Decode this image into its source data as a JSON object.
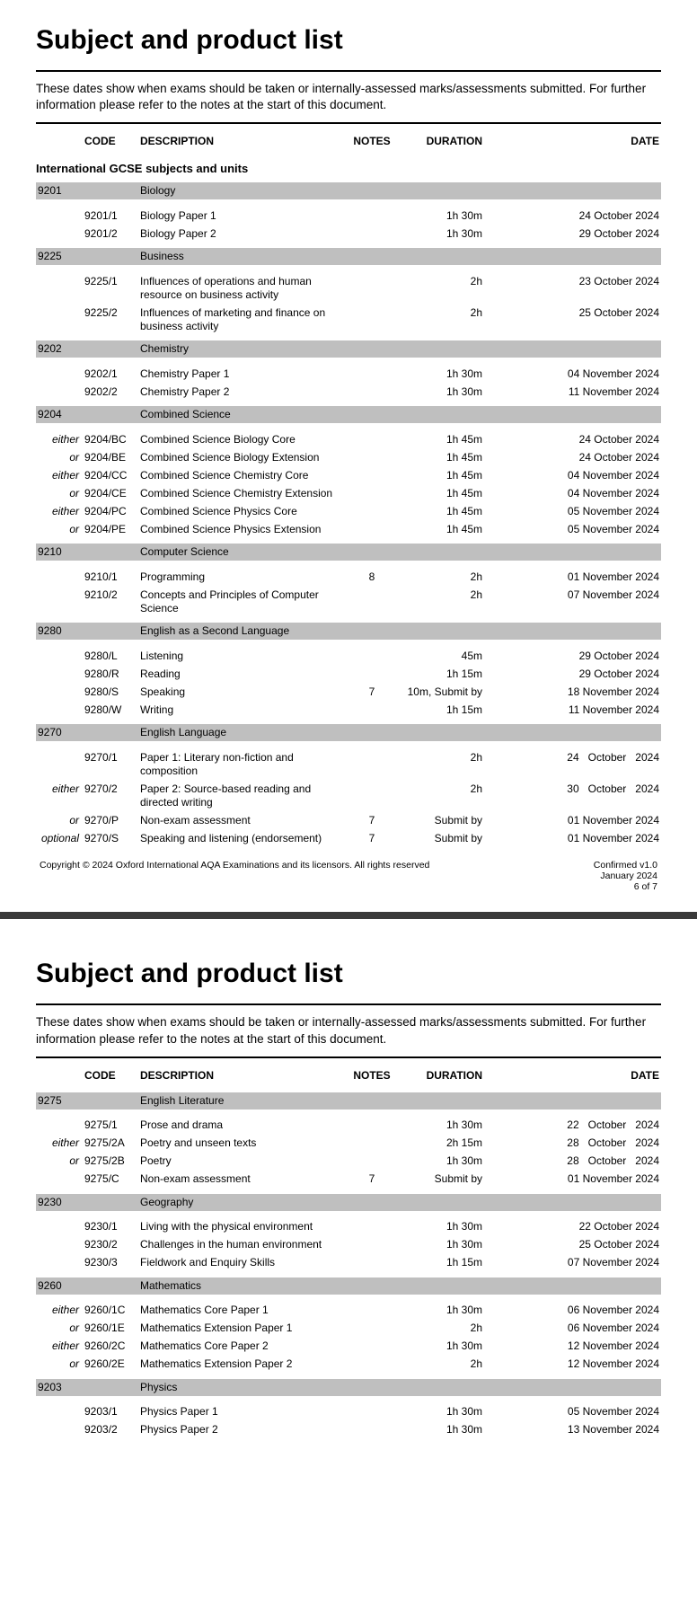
{
  "doc": {
    "title": "Subject and product list",
    "intro": "These dates show when exams should be taken or internally-assessed marks/assessments submitted.  For further information please refer to the notes at the start of this document.",
    "headers": {
      "code": "CODE",
      "description": "DESCRIPTION",
      "notes": "NOTES",
      "duration": "DURATION",
      "date": "DATE"
    },
    "section_heading": "International GCSE subjects and units",
    "footer": {
      "copyright": "Copyright © 2024 Oxford International AQA Examinations and its licensors. All rights reserved",
      "version": "Confirmed v1.0",
      "issued": "January 2024",
      "page": "6 of 7"
    }
  },
  "colors": {
    "bar_bg": "#bfbfbf",
    "text": "#000000",
    "page_bg": "#ffffff"
  },
  "page1_subjects": [
    {
      "code": "9201",
      "name": "Biology",
      "rows": [
        {
          "opt": "",
          "code": "9201/1",
          "desc": "Biology Paper 1",
          "notes": "",
          "dur": "1h 30m",
          "date": "24 October 2024"
        },
        {
          "opt": "",
          "code": "9201/2",
          "desc": "Biology Paper 2",
          "notes": "",
          "dur": "1h 30m",
          "date": "29 October 2024"
        }
      ]
    },
    {
      "code": "9225",
      "name": "Business",
      "rows": [
        {
          "opt": "",
          "code": "9225/1",
          "desc": "Influences of operations and human resource on business activity",
          "notes": "",
          "dur": "2h",
          "date": "23 October 2024"
        },
        {
          "opt": "",
          "code": "9225/2",
          "desc": "Influences of marketing and finance on business activity",
          "notes": "",
          "dur": "2h",
          "date": "25 October 2024"
        }
      ]
    },
    {
      "code": "9202",
      "name": "Chemistry",
      "rows": [
        {
          "opt": "",
          "code": "9202/1",
          "desc": "Chemistry Paper 1",
          "notes": "",
          "dur": "1h 30m",
          "date": "04 November 2024"
        },
        {
          "opt": "",
          "code": "9202/2",
          "desc": "Chemistry Paper 2",
          "notes": "",
          "dur": "1h 30m",
          "date": "11 November 2024"
        }
      ]
    },
    {
      "code": "9204",
      "name": "Combined Science",
      "rows": [
        {
          "opt": "either",
          "code": "9204/BC",
          "desc": "Combined Science Biology Core",
          "notes": "",
          "dur": "1h 45m",
          "date": "24 October 2024"
        },
        {
          "opt": "or",
          "code": "9204/BE",
          "desc": "Combined Science Biology Extension",
          "notes": "",
          "dur": "1h 45m",
          "date": "24 October 2024"
        },
        {
          "opt": "either",
          "code": "9204/CC",
          "desc": "Combined Science Chemistry Core",
          "notes": "",
          "dur": "1h 45m",
          "date": "04 November 2024"
        },
        {
          "opt": "or",
          "code": "9204/CE",
          "desc": "Combined Science Chemistry Extension",
          "notes": "",
          "dur": "1h 45m",
          "date": "04 November 2024"
        },
        {
          "opt": "either",
          "code": "9204/PC",
          "desc": "Combined Science Physics Core",
          "notes": "",
          "dur": "1h 45m",
          "date": "05 November 2024"
        },
        {
          "opt": "or",
          "code": "9204/PE",
          "desc": "Combined Science Physics Extension",
          "notes": "",
          "dur": "1h 45m",
          "date": "05 November 2024"
        }
      ]
    },
    {
      "code": "9210",
      "name": "Computer Science",
      "rows": [
        {
          "opt": "",
          "code": "9210/1",
          "desc": "Programming",
          "notes": "8",
          "dur": "2h",
          "date": "01 November 2024"
        },
        {
          "opt": "",
          "code": "9210/2",
          "desc": "Concepts and Principles of Computer Science",
          "notes": "",
          "dur": "2h",
          "date": "07 November 2024"
        }
      ]
    },
    {
      "code": "9280",
      "name": "English as a Second Language",
      "rows": [
        {
          "opt": "",
          "code": "9280/L",
          "desc": "Listening",
          "notes": "",
          "dur": "45m",
          "date": "29 October 2024"
        },
        {
          "opt": "",
          "code": "9280/R",
          "desc": "Reading",
          "notes": "",
          "dur": "1h 15m",
          "date": "29 October 2024"
        },
        {
          "opt": "",
          "code": "9280/S",
          "desc": "Speaking",
          "notes": "7",
          "dur": "10m, Submit by",
          "date": "18 November 2024"
        },
        {
          "opt": "",
          "code": "9280/W",
          "desc": "Writing",
          "notes": "",
          "dur": "1h 15m",
          "date": "11 November 2024"
        }
      ]
    },
    {
      "code": "9270",
      "name": "English Language",
      "rows": [
        {
          "opt": "",
          "code": "9270/1",
          "desc": "Paper 1: Literary non-fiction and composition",
          "notes": "",
          "dur": "2h",
          "date": "24   October   2024"
        },
        {
          "opt": "either",
          "code": "9270/2",
          "desc": "Paper 2: Source-based reading and directed writing",
          "notes": "",
          "dur": "2h",
          "date": "30   October   2024"
        },
        {
          "opt": "or",
          "code": "9270/P",
          "desc": "Non-exam assessment",
          "notes": "7",
          "dur": "Submit by",
          "date": "01 November 2024"
        },
        {
          "opt": "optional",
          "code": "9270/S",
          "desc": "Speaking and listening (endorsement)",
          "notes": "7",
          "dur": "Submit by",
          "date": "01 November 2024"
        }
      ]
    }
  ],
  "page2_subjects": [
    {
      "code": "9275",
      "name": "English Literature",
      "rows": [
        {
          "opt": "",
          "code": "9275/1",
          "desc": "Prose and drama",
          "notes": "",
          "dur": "1h 30m",
          "date": "22   October   2024"
        },
        {
          "opt": "either",
          "code": "9275/2A",
          "desc": "Poetry and unseen texts",
          "notes": "",
          "dur": "2h 15m",
          "date": "28   October   2024"
        },
        {
          "opt": "or",
          "code": "9275/2B",
          "desc": "Poetry",
          "notes": "",
          "dur": "1h 30m",
          "date": "28   October   2024"
        },
        {
          "opt": "",
          "code": "9275/C",
          "desc": "Non-exam assessment",
          "notes": "7",
          "dur": "Submit by",
          "date": "01 November 2024"
        }
      ]
    },
    {
      "code": "9230",
      "name": "Geography",
      "rows": [
        {
          "opt": "",
          "code": "9230/1",
          "desc": "Living with the physical environment",
          "notes": "",
          "dur": "1h 30m",
          "date": "22 October 2024"
        },
        {
          "opt": "",
          "code": "9230/2",
          "desc": "Challenges in the human environment",
          "notes": "",
          "dur": "1h 30m",
          "date": "25 October 2024"
        },
        {
          "opt": "",
          "code": "9230/3",
          "desc": "Fieldwork and Enquiry Skills",
          "notes": "",
          "dur": "1h 15m",
          "date": "07 November 2024"
        }
      ]
    },
    {
      "code": "9260",
      "name": "Mathematics",
      "rows": [
        {
          "opt": "either",
          "code": "9260/1C",
          "desc": "Mathematics Core Paper 1",
          "notes": "",
          "dur": "1h 30m",
          "date": "06 November 2024"
        },
        {
          "opt": "or",
          "code": "9260/1E",
          "desc": "Mathematics Extension Paper 1",
          "notes": "",
          "dur": "2h",
          "date": "06 November 2024"
        },
        {
          "opt": "either",
          "code": "9260/2C",
          "desc": "Mathematics Core Paper 2",
          "notes": "",
          "dur": "1h 30m",
          "date": "12 November 2024"
        },
        {
          "opt": "or",
          "code": "9260/2E",
          "desc": "Mathematics Extension Paper 2",
          "notes": "",
          "dur": "2h",
          "date": "12 November 2024"
        }
      ]
    },
    {
      "code": "9203",
      "name": "Physics",
      "rows": [
        {
          "opt": "",
          "code": "9203/1",
          "desc": "Physics  Paper 1",
          "notes": "",
          "dur": "1h 30m",
          "date": "05 November 2024"
        },
        {
          "opt": "",
          "code": "9203/2",
          "desc": "Physics Paper 2",
          "notes": "",
          "dur": "1h 30m",
          "date": "13 November 2024"
        }
      ]
    }
  ]
}
